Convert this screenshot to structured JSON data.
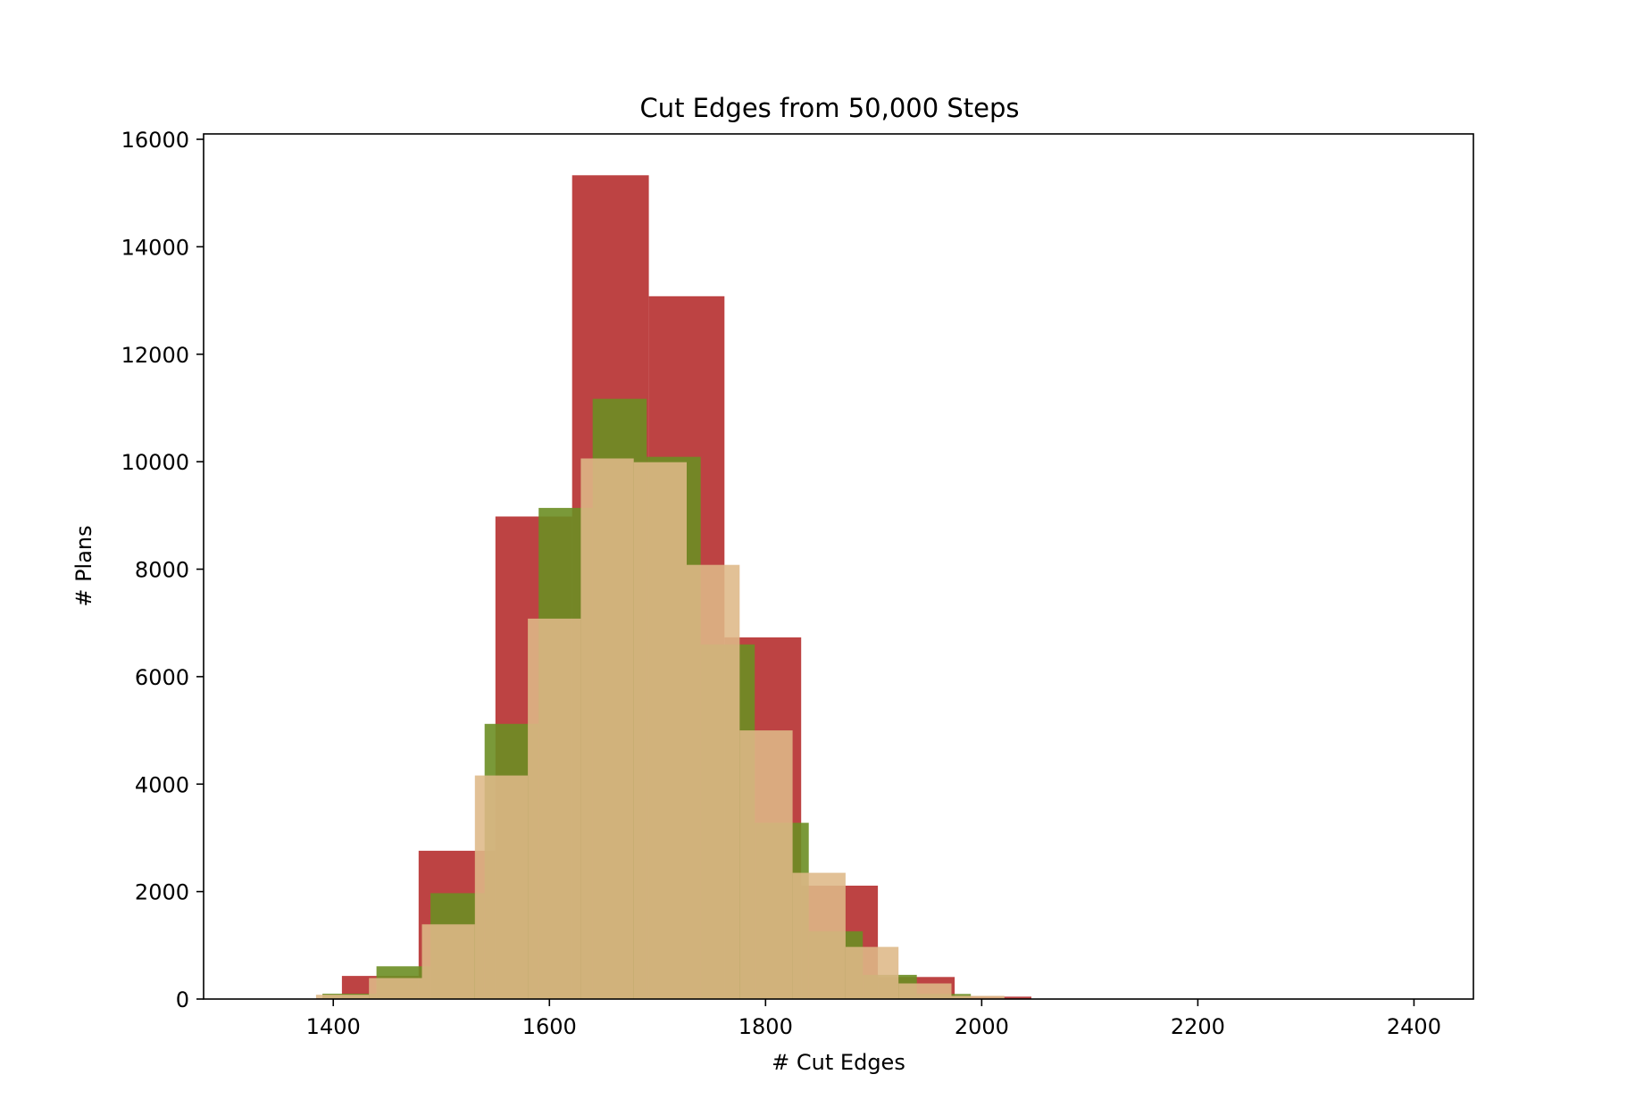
{
  "chart_data": {
    "type": "bar",
    "title": "Cut Edges from 50,000 Steps",
    "xlabel": "# Cut Edges",
    "ylabel": "# Plans",
    "xlim": [
      1280,
      2455
    ],
    "ylim": [
      0,
      16100
    ],
    "xticks": [
      1400,
      1600,
      1800,
      2000,
      2200,
      2400
    ],
    "yticks": [
      0,
      2000,
      4000,
      6000,
      8000,
      10000,
      12000,
      14000,
      16000
    ],
    "grid": false,
    "series": [
      {
        "color": "#b22222",
        "opacity": 0.85,
        "bins": [
          {
            "x0": 1408,
            "x1": 1479,
            "count": 430
          },
          {
            "x0": 1479,
            "x1": 1550,
            "count": 2760
          },
          {
            "x0": 1550,
            "x1": 1621,
            "count": 8980
          },
          {
            "x0": 1621,
            "x1": 1692,
            "count": 15330
          },
          {
            "x0": 1692,
            "x1": 1762,
            "count": 13080
          },
          {
            "x0": 1762,
            "x1": 1833,
            "count": 6730
          },
          {
            "x0": 1833,
            "x1": 1904,
            "count": 2110
          },
          {
            "x0": 1904,
            "x1": 1975,
            "count": 410
          },
          {
            "x0": 1975,
            "x1": 2046,
            "count": 45
          }
        ]
      },
      {
        "color": "#6b8e23",
        "opacity": 0.9,
        "bins": [
          {
            "x0": 1390,
            "x1": 1440,
            "count": 100
          },
          {
            "x0": 1440,
            "x1": 1490,
            "count": 610
          },
          {
            "x0": 1490,
            "x1": 1540,
            "count": 1970
          },
          {
            "x0": 1540,
            "x1": 1590,
            "count": 5120
          },
          {
            "x0": 1590,
            "x1": 1640,
            "count": 9140
          },
          {
            "x0": 1640,
            "x1": 1690,
            "count": 11170
          },
          {
            "x0": 1690,
            "x1": 1740,
            "count": 10090
          },
          {
            "x0": 1740,
            "x1": 1790,
            "count": 6600
          },
          {
            "x0": 1790,
            "x1": 1840,
            "count": 3280
          },
          {
            "x0": 1840,
            "x1": 1890,
            "count": 1260
          },
          {
            "x0": 1890,
            "x1": 1940,
            "count": 450
          },
          {
            "x0": 1940,
            "x1": 1990,
            "count": 95
          }
        ]
      },
      {
        "color": "#deb887",
        "opacity": 0.88,
        "bins": [
          {
            "x0": 1384,
            "x1": 1433,
            "count": 80
          },
          {
            "x0": 1433,
            "x1": 1482,
            "count": 390
          },
          {
            "x0": 1482,
            "x1": 1531,
            "count": 1390
          },
          {
            "x0": 1531,
            "x1": 1580,
            "count": 4160
          },
          {
            "x0": 1580,
            "x1": 1629,
            "count": 7080
          },
          {
            "x0": 1629,
            "x1": 1678,
            "count": 10060
          },
          {
            "x0": 1678,
            "x1": 1727,
            "count": 9990
          },
          {
            "x0": 1727,
            "x1": 1776,
            "count": 8080
          },
          {
            "x0": 1776,
            "x1": 1825,
            "count": 5000
          },
          {
            "x0": 1825,
            "x1": 1874,
            "count": 2350
          },
          {
            "x0": 1874,
            "x1": 1923,
            "count": 970
          },
          {
            "x0": 1923,
            "x1": 1972,
            "count": 290
          },
          {
            "x0": 1972,
            "x1": 2021,
            "count": 60
          }
        ]
      }
    ]
  }
}
